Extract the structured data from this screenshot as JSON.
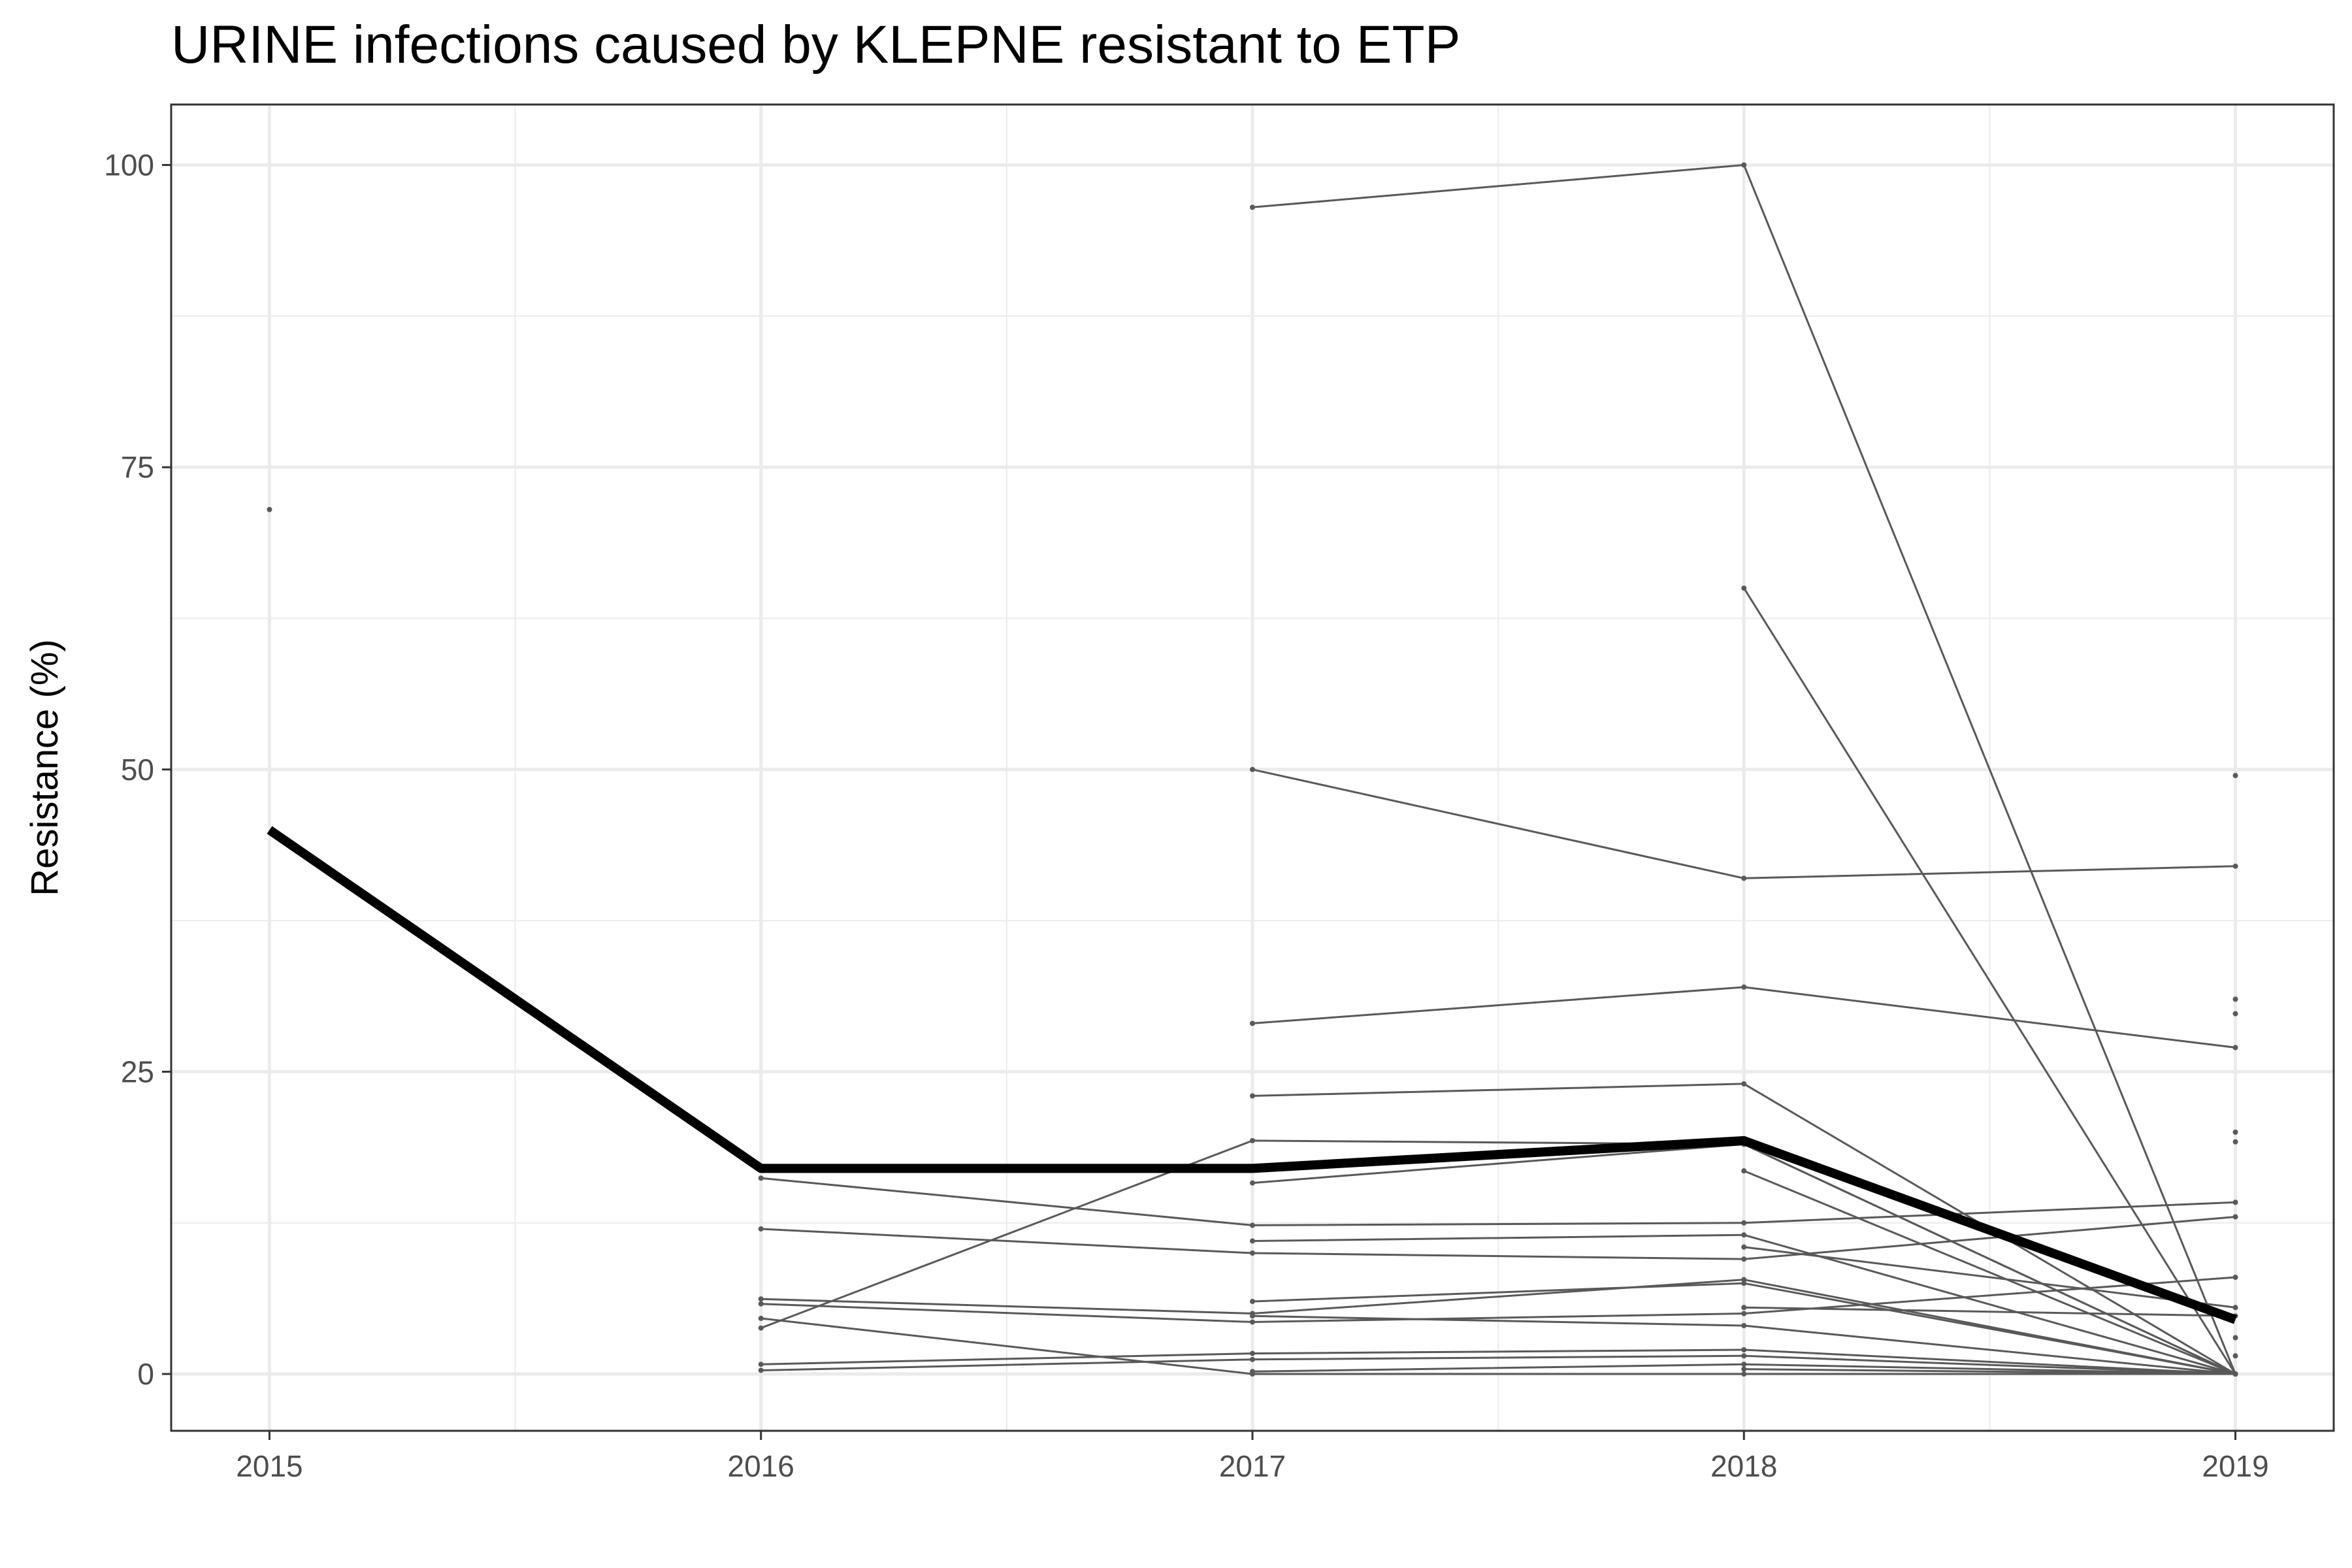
{
  "chart_data": {
    "type": "line",
    "title": "URINE infections caused by KLEPNE resistant to ETP",
    "xlabel": "",
    "ylabel": "Resistance (%)",
    "x": [
      2015,
      2016,
      2017,
      2018,
      2019
    ],
    "xlim": [
      2014.8,
      2019.2
    ],
    "ylim": [
      -4.7,
      105
    ],
    "x_ticks": [
      2015,
      2016,
      2017,
      2018,
      2019
    ],
    "y_ticks": [
      0,
      25,
      50,
      75,
      100
    ],
    "grid": true,
    "legend": "none",
    "colors": {
      "summary": "#000000",
      "series": "#595959",
      "grid": "#ebebeb",
      "panel_border": "#333333"
    },
    "summary": {
      "values": [
        45,
        17,
        17,
        19.3,
        4.5
      ]
    },
    "series": [
      {
        "values": [
          71.5,
          null,
          null,
          null,
          null
        ]
      },
      {
        "values": [
          null,
          null,
          96.5,
          100,
          0
        ]
      },
      {
        "values": [
          null,
          null,
          null,
          65,
          0
        ]
      },
      {
        "values": [
          null,
          null,
          50,
          41,
          42
        ]
      },
      {
        "values": [
          null,
          null,
          29,
          32,
          27
        ]
      },
      {
        "values": [
          null,
          null,
          23,
          24,
          0
        ]
      },
      {
        "values": [
          null,
          3.8,
          19.3,
          19,
          0
        ]
      },
      {
        "values": [
          null,
          null,
          15.8,
          19,
          0
        ]
      },
      {
        "values": [
          null,
          null,
          null,
          16.8,
          0
        ]
      },
      {
        "values": [
          null,
          16.2,
          12.3,
          12.5,
          14.2
        ]
      },
      {
        "values": [
          null,
          12,
          10,
          9.5,
          13
        ]
      },
      {
        "values": [
          null,
          null,
          11,
          11.5,
          0
        ]
      },
      {
        "values": [
          null,
          null,
          null,
          10.5,
          5.5
        ]
      },
      {
        "values": [
          null,
          null,
          6,
          7.5,
          0
        ]
      },
      {
        "values": [
          null,
          6.2,
          5,
          7.8,
          0
        ]
      },
      {
        "values": [
          null,
          5.8,
          4.3,
          5,
          8
        ]
      },
      {
        "values": [
          null,
          4.6,
          0,
          0,
          0
        ]
      },
      {
        "values": [
          null,
          null,
          4.8,
          4,
          0
        ]
      },
      {
        "values": [
          null,
          null,
          null,
          5.5,
          4.8
        ]
      },
      {
        "values": [
          null,
          0.8,
          1.7,
          2,
          0
        ]
      },
      {
        "values": [
          null,
          0.3,
          1.2,
          1.5,
          0
        ]
      },
      {
        "values": [
          null,
          null,
          0.2,
          0.8,
          0
        ]
      },
      {
        "values": [
          null,
          null,
          null,
          0.4,
          0
        ]
      },
      {
        "values": [
          null,
          null,
          null,
          null,
          49.5
        ]
      },
      {
        "values": [
          null,
          null,
          null,
          null,
          31
        ]
      },
      {
        "values": [
          null,
          null,
          null,
          null,
          29.8
        ]
      },
      {
        "values": [
          null,
          null,
          null,
          null,
          20
        ]
      },
      {
        "values": [
          null,
          null,
          null,
          null,
          19.2
        ]
      },
      {
        "values": [
          null,
          null,
          null,
          null,
          3
        ]
      },
      {
        "values": [
          null,
          null,
          null,
          null,
          1.5
        ]
      }
    ]
  }
}
